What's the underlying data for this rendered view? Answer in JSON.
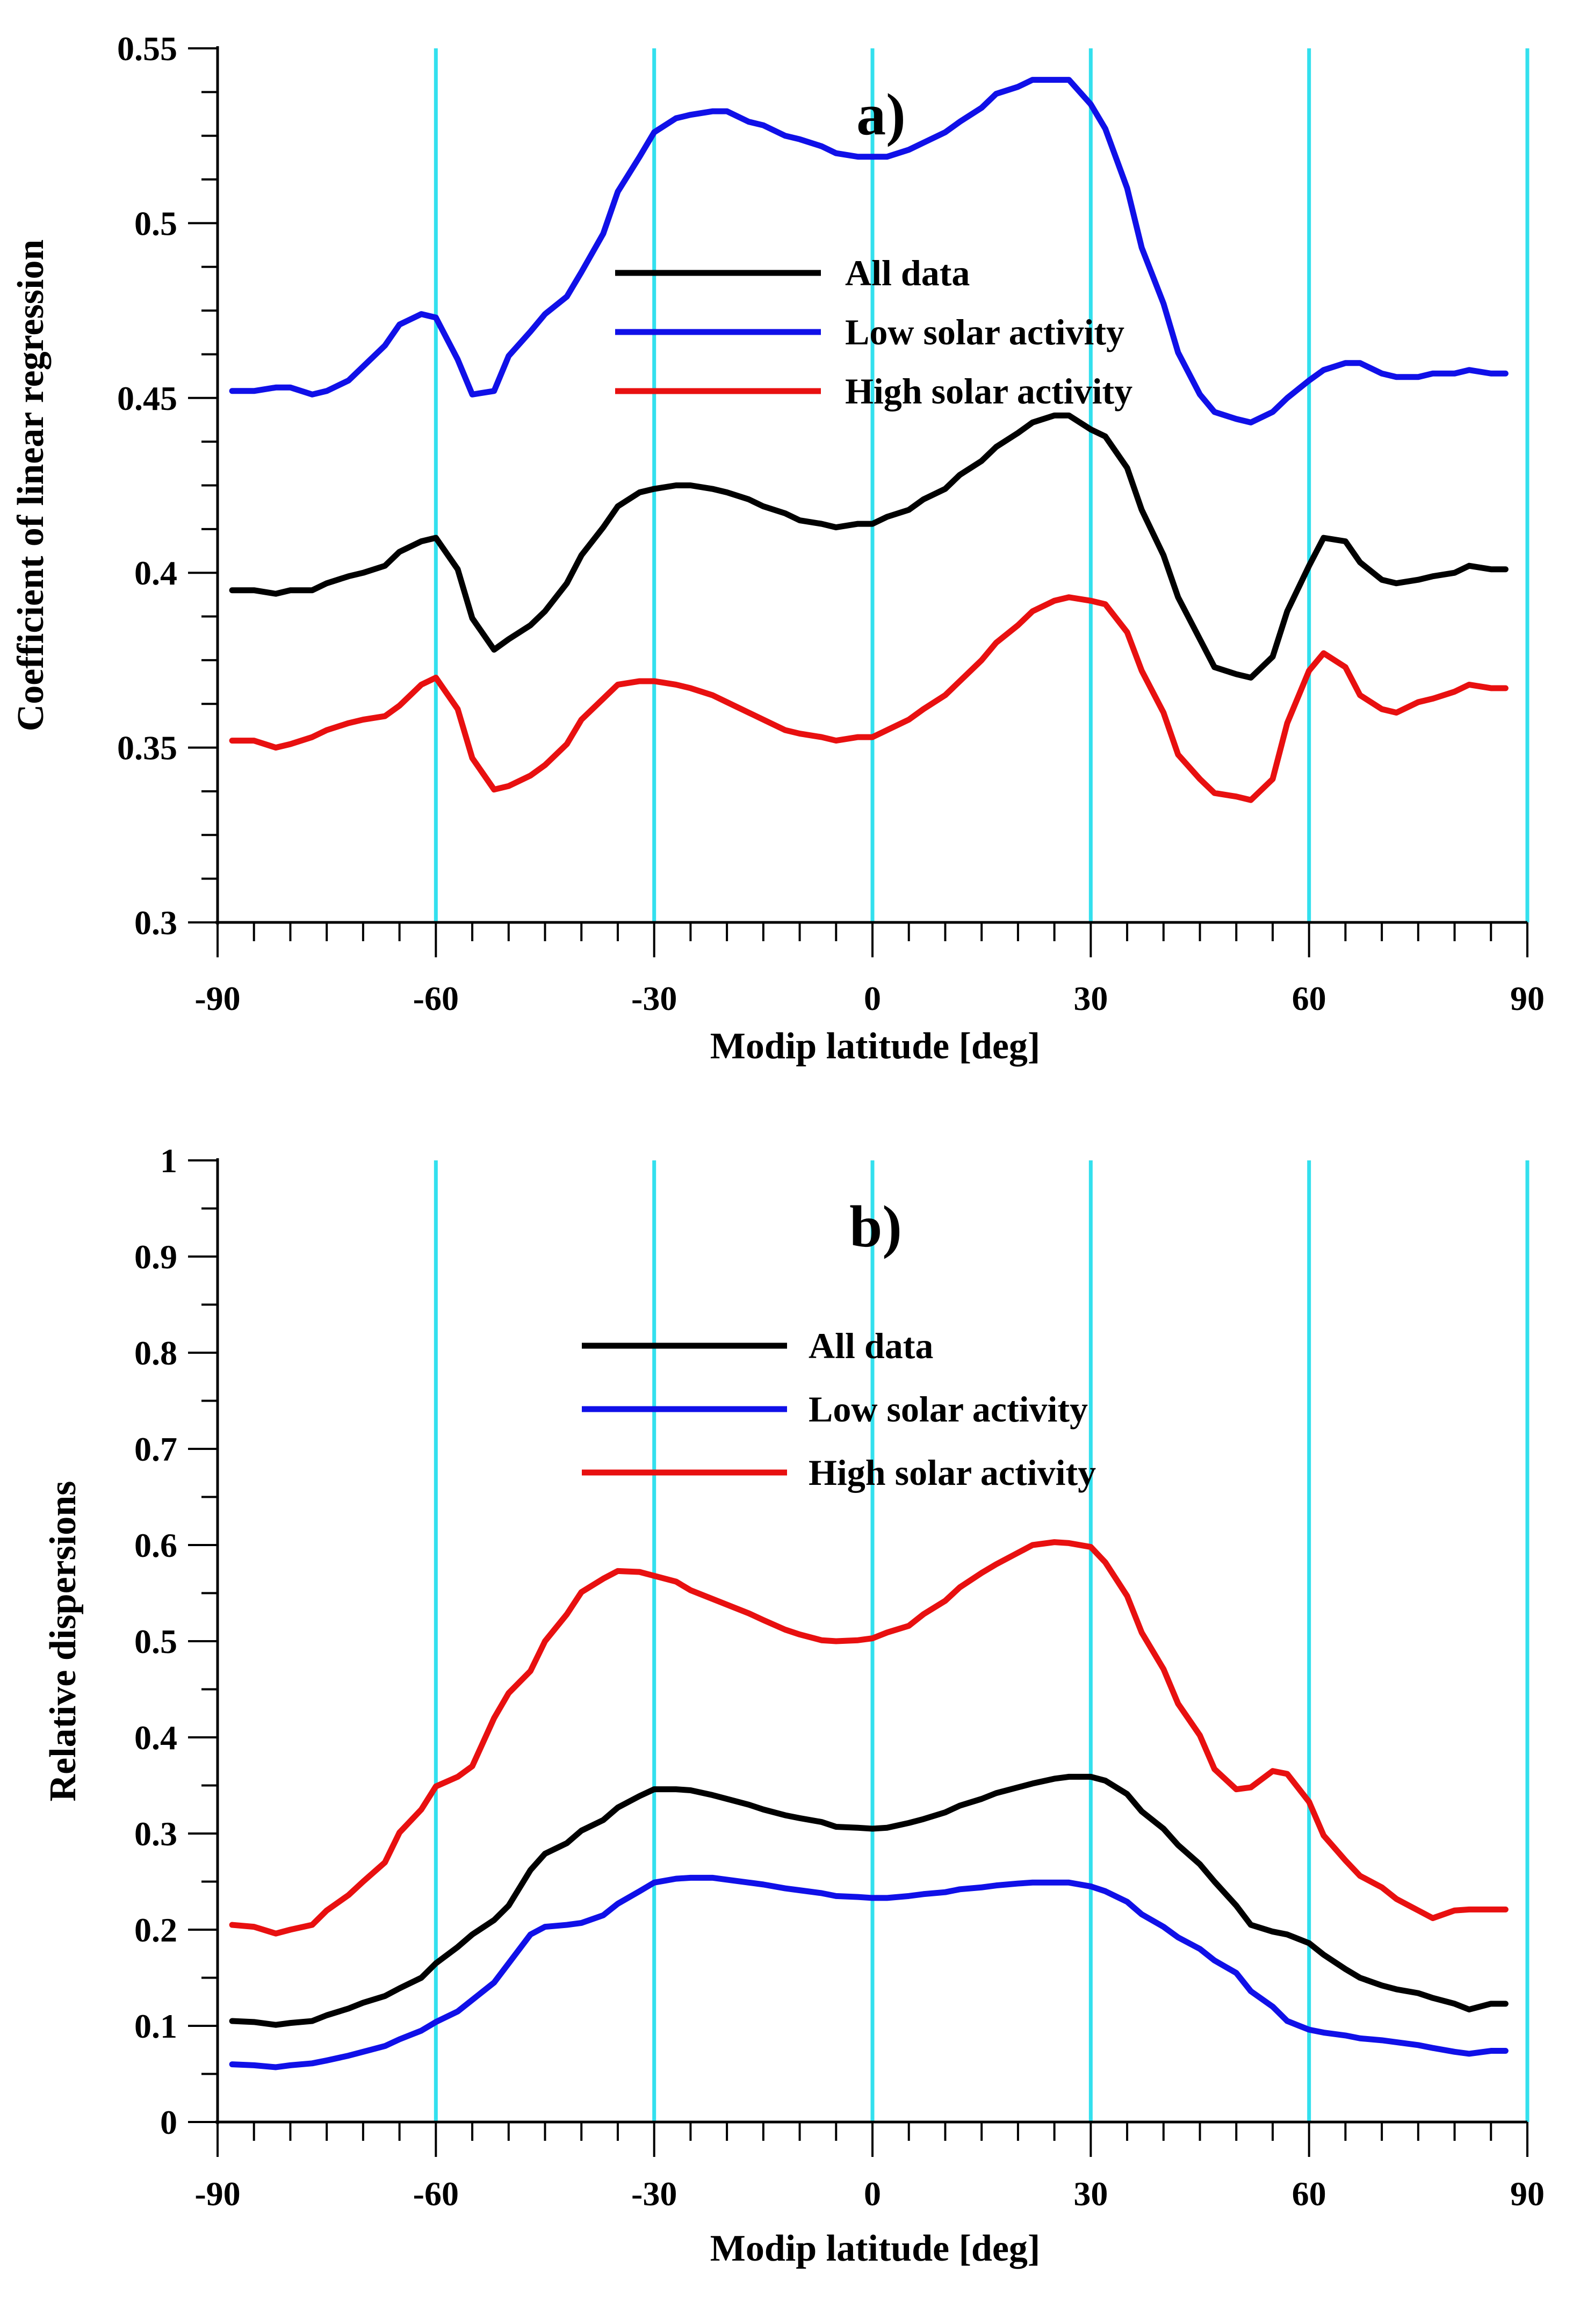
{
  "chart_data": [
    {
      "type": "line",
      "panel_label": "a)",
      "xlabel": "Modip latitude [deg]",
      "ylabel": "Coefficient of linear regression",
      "xlim": [
        -90,
        90
      ],
      "ylim": [
        0.3,
        0.55
      ],
      "x_ticks": [
        -90,
        -60,
        -30,
        0,
        30,
        60,
        90
      ],
      "x_tick_labels": [
        "-90",
        "-60",
        "-30",
        "0",
        "30",
        "60",
        "90"
      ],
      "y_ticks": [
        0.3,
        0.35,
        0.4,
        0.45,
        0.5,
        0.55
      ],
      "y_tick_labels": [
        "0.3",
        "0.35",
        "0.4",
        "0.45",
        "0.5",
        "0.55"
      ],
      "y_minor_step": 0.0125,
      "vertical_gridlines": [
        -60,
        -30,
        0,
        30,
        60,
        90
      ],
      "gridline_color": "#33e0ee",
      "legend_position": "top-center",
      "series": [
        {
          "name": "All data",
          "color": "#000000",
          "x": [
            -88,
            -85,
            -82,
            -80,
            -77,
            -75,
            -72,
            -70,
            -67,
            -65,
            -62,
            -60,
            -57,
            -55,
            -52,
            -50,
            -47,
            -45,
            -42,
            -40,
            -37,
            -35,
            -32,
            -30,
            -27,
            -25,
            -22,
            -20,
            -17,
            -15,
            -12,
            -10,
            -7,
            -5,
            -2,
            0,
            2,
            5,
            7,
            10,
            12,
            15,
            17,
            20,
            22,
            25,
            27,
            30,
            32,
            35,
            37,
            40,
            42,
            45,
            47,
            50,
            52,
            55,
            57,
            60,
            62,
            65,
            67,
            70,
            72,
            75,
            77,
            80,
            82,
            85,
            87
          ],
          "values": [
            0.395,
            0.395,
            0.394,
            0.395,
            0.395,
            0.397,
            0.399,
            0.4,
            0.402,
            0.406,
            0.409,
            0.41,
            0.401,
            0.387,
            0.378,
            0.381,
            0.385,
            0.389,
            0.397,
            0.405,
            0.413,
            0.419,
            0.423,
            0.424,
            0.425,
            0.425,
            0.424,
            0.423,
            0.421,
            0.419,
            0.417,
            0.415,
            0.414,
            0.413,
            0.414,
            0.414,
            0.416,
            0.418,
            0.421,
            0.424,
            0.428,
            0.432,
            0.436,
            0.44,
            0.443,
            0.445,
            0.445,
            0.441,
            0.439,
            0.43,
            0.418,
            0.405,
            0.393,
            0.381,
            0.373,
            0.371,
            0.37,
            0.376,
            0.389,
            0.402,
            0.41,
            0.409,
            0.403,
            0.398,
            0.397,
            0.398,
            0.399,
            0.4,
            0.402,
            0.401,
            0.401
          ]
        },
        {
          "name": "Low solar activity",
          "color": "#1010e8",
          "x": [
            -88,
            -85,
            -82,
            -80,
            -77,
            -75,
            -72,
            -70,
            -67,
            -65,
            -62,
            -60,
            -57,
            -55,
            -52,
            -50,
            -47,
            -45,
            -42,
            -40,
            -37,
            -35,
            -32,
            -30,
            -27,
            -25,
            -22,
            -20,
            -17,
            -15,
            -12,
            -10,
            -7,
            -5,
            -2,
            0,
            2,
            5,
            7,
            10,
            12,
            15,
            17,
            20,
            22,
            25,
            27,
            30,
            32,
            35,
            37,
            40,
            42,
            45,
            47,
            50,
            52,
            55,
            57,
            60,
            62,
            65,
            67,
            70,
            72,
            75,
            77,
            80,
            82,
            85,
            87
          ],
          "values": [
            0.452,
            0.452,
            0.453,
            0.453,
            0.451,
            0.452,
            0.455,
            0.459,
            0.465,
            0.471,
            0.474,
            0.473,
            0.461,
            0.451,
            0.452,
            0.462,
            0.469,
            0.474,
            0.479,
            0.486,
            0.497,
            0.509,
            0.519,
            0.526,
            0.53,
            0.531,
            0.532,
            0.532,
            0.529,
            0.528,
            0.525,
            0.524,
            0.522,
            0.52,
            0.519,
            0.519,
            0.519,
            0.521,
            0.523,
            0.526,
            0.529,
            0.533,
            0.537,
            0.539,
            0.541,
            0.541,
            0.541,
            0.534,
            0.527,
            0.51,
            0.493,
            0.477,
            0.463,
            0.451,
            0.446,
            0.444,
            0.443,
            0.446,
            0.45,
            0.455,
            0.458,
            0.46,
            0.46,
            0.457,
            0.456,
            0.456,
            0.457,
            0.457,
            0.458,
            0.457,
            0.457
          ]
        },
        {
          "name": "High solar activity",
          "color": "#e81010",
          "x": [
            -88,
            -85,
            -82,
            -80,
            -77,
            -75,
            -72,
            -70,
            -67,
            -65,
            -62,
            -60,
            -57,
            -55,
            -52,
            -50,
            -47,
            -45,
            -42,
            -40,
            -37,
            -35,
            -32,
            -30,
            -27,
            -25,
            -22,
            -20,
            -17,
            -15,
            -12,
            -10,
            -7,
            -5,
            -2,
            0,
            2,
            5,
            7,
            10,
            12,
            15,
            17,
            20,
            22,
            25,
            27,
            30,
            32,
            35,
            37,
            40,
            42,
            45,
            47,
            50,
            52,
            55,
            57,
            60,
            62,
            65,
            67,
            70,
            72,
            75,
            77,
            80,
            82,
            85,
            87
          ],
          "values": [
            0.352,
            0.352,
            0.35,
            0.351,
            0.353,
            0.355,
            0.357,
            0.358,
            0.359,
            0.362,
            0.368,
            0.37,
            0.361,
            0.347,
            0.338,
            0.339,
            0.342,
            0.345,
            0.351,
            0.358,
            0.364,
            0.368,
            0.369,
            0.369,
            0.368,
            0.367,
            0.365,
            0.363,
            0.36,
            0.358,
            0.355,
            0.354,
            0.353,
            0.352,
            0.353,
            0.353,
            0.355,
            0.358,
            0.361,
            0.365,
            0.369,
            0.375,
            0.38,
            0.385,
            0.389,
            0.392,
            0.393,
            0.392,
            0.391,
            0.383,
            0.372,
            0.36,
            0.348,
            0.341,
            0.337,
            0.336,
            0.335,
            0.341,
            0.357,
            0.372,
            0.377,
            0.373,
            0.365,
            0.361,
            0.36,
            0.363,
            0.364,
            0.366,
            0.368,
            0.367,
            0.367
          ]
        }
      ]
    },
    {
      "type": "line",
      "panel_label": "b)",
      "xlabel": "Modip latitude [deg]",
      "ylabel": "Relative dispersions",
      "xlim": [
        -90,
        90
      ],
      "ylim": [
        0,
        1
      ],
      "x_ticks": [
        -90,
        -60,
        -30,
        0,
        30,
        60,
        90
      ],
      "x_tick_labels": [
        "-90",
        "-60",
        "-30",
        "0",
        "30",
        "60",
        "90"
      ],
      "y_ticks": [
        0,
        0.1,
        0.2,
        0.3,
        0.4,
        0.5,
        0.6,
        0.7,
        0.8,
        0.9,
        1
      ],
      "y_tick_labels": [
        "0",
        "0.1",
        "0.2",
        "0.3",
        "0.4",
        "0.5",
        "0.6",
        "0.7",
        "0.8",
        "0.9",
        "1"
      ],
      "y_minor_step": 0.05,
      "vertical_gridlines": [
        -60,
        -30,
        0,
        30,
        60,
        90
      ],
      "gridline_color": "#33e0ee",
      "legend_position": "top-center",
      "series": [
        {
          "name": "All data",
          "color": "#000000",
          "x": [
            -88,
            -85,
            -82,
            -80,
            -77,
            -75,
            -72,
            -70,
            -67,
            -65,
            -62,
            -60,
            -57,
            -55,
            -52,
            -50,
            -47,
            -45,
            -42,
            -40,
            -37,
            -35,
            -32,
            -30,
            -27,
            -25,
            -22,
            -20,
            -17,
            -15,
            -12,
            -10,
            -7,
            -5,
            -2,
            0,
            2,
            5,
            7,
            10,
            12,
            15,
            17,
            20,
            22,
            25,
            27,
            30,
            32,
            35,
            37,
            40,
            42,
            45,
            47,
            50,
            52,
            55,
            57,
            60,
            62,
            65,
            67,
            70,
            72,
            75,
            77,
            80,
            82,
            85,
            87
          ],
          "values": [
            0.105,
            0.104,
            0.101,
            0.103,
            0.105,
            0.111,
            0.118,
            0.124,
            0.131,
            0.139,
            0.15,
            0.165,
            0.182,
            0.195,
            0.21,
            0.225,
            0.262,
            0.279,
            0.29,
            0.303,
            0.314,
            0.327,
            0.339,
            0.346,
            0.346,
            0.345,
            0.34,
            0.336,
            0.33,
            0.325,
            0.319,
            0.316,
            0.312,
            0.307,
            0.306,
            0.305,
            0.306,
            0.311,
            0.315,
            0.322,
            0.329,
            0.336,
            0.342,
            0.348,
            0.352,
            0.357,
            0.359,
            0.359,
            0.355,
            0.341,
            0.323,
            0.305,
            0.288,
            0.268,
            0.25,
            0.225,
            0.205,
            0.198,
            0.195,
            0.186,
            0.174,
            0.159,
            0.15,
            0.142,
            0.138,
            0.134,
            0.129,
            0.123,
            0.117,
            0.123,
            0.123
          ]
        },
        {
          "name": "Low solar activity",
          "color": "#1010e8",
          "x": [
            -88,
            -85,
            -82,
            -80,
            -77,
            -75,
            -72,
            -70,
            -67,
            -65,
            -62,
            -60,
            -57,
            -55,
            -52,
            -50,
            -47,
            -45,
            -42,
            -40,
            -37,
            -35,
            -32,
            -30,
            -27,
            -25,
            -22,
            -20,
            -17,
            -15,
            -12,
            -10,
            -7,
            -5,
            -2,
            0,
            2,
            5,
            7,
            10,
            12,
            15,
            17,
            20,
            22,
            25,
            27,
            30,
            32,
            35,
            37,
            40,
            42,
            45,
            47,
            50,
            52,
            55,
            57,
            60,
            62,
            65,
            67,
            70,
            72,
            75,
            77,
            80,
            82,
            85,
            87
          ],
          "values": [
            0.06,
            0.059,
            0.057,
            0.059,
            0.061,
            0.064,
            0.069,
            0.073,
            0.079,
            0.086,
            0.095,
            0.104,
            0.115,
            0.127,
            0.145,
            0.165,
            0.195,
            0.203,
            0.205,
            0.207,
            0.215,
            0.227,
            0.24,
            0.249,
            0.253,
            0.254,
            0.254,
            0.252,
            0.249,
            0.247,
            0.243,
            0.241,
            0.238,
            0.235,
            0.234,
            0.233,
            0.233,
            0.235,
            0.237,
            0.239,
            0.242,
            0.244,
            0.246,
            0.248,
            0.249,
            0.249,
            0.249,
            0.245,
            0.24,
            0.229,
            0.216,
            0.203,
            0.192,
            0.18,
            0.168,
            0.155,
            0.136,
            0.12,
            0.105,
            0.096,
            0.093,
            0.09,
            0.087,
            0.085,
            0.083,
            0.08,
            0.077,
            0.073,
            0.071,
            0.074,
            0.074
          ]
        },
        {
          "name": "High solar activity",
          "color": "#e81010",
          "x": [
            -88,
            -85,
            -82,
            -80,
            -77,
            -75,
            -72,
            -70,
            -67,
            -65,
            -62,
            -60,
            -57,
            -55,
            -52,
            -50,
            -47,
            -45,
            -42,
            -40,
            -37,
            -35,
            -32,
            -30,
            -27,
            -25,
            -22,
            -20,
            -17,
            -15,
            -12,
            -10,
            -7,
            -5,
            -2,
            0,
            2,
            5,
            7,
            10,
            12,
            15,
            17,
            20,
            22,
            25,
            27,
            30,
            32,
            35,
            37,
            40,
            42,
            45,
            47,
            50,
            52,
            55,
            57,
            60,
            62,
            65,
            67,
            70,
            72,
            75,
            77,
            80,
            82,
            85,
            87
          ],
          "values": [
            0.205,
            0.203,
            0.196,
            0.2,
            0.205,
            0.22,
            0.236,
            0.25,
            0.27,
            0.301,
            0.325,
            0.349,
            0.359,
            0.37,
            0.42,
            0.446,
            0.469,
            0.5,
            0.528,
            0.551,
            0.565,
            0.573,
            0.572,
            0.568,
            0.562,
            0.553,
            0.544,
            0.538,
            0.529,
            0.522,
            0.512,
            0.507,
            0.501,
            0.5,
            0.501,
            0.503,
            0.509,
            0.516,
            0.528,
            0.542,
            0.556,
            0.571,
            0.58,
            0.592,
            0.6,
            0.603,
            0.602,
            0.598,
            0.582,
            0.547,
            0.509,
            0.471,
            0.435,
            0.402,
            0.367,
            0.346,
            0.348,
            0.365,
            0.362,
            0.333,
            0.298,
            0.272,
            0.256,
            0.244,
            0.232,
            0.22,
            0.212,
            0.22,
            0.221,
            0.221,
            0.221
          ]
        }
      ]
    }
  ]
}
